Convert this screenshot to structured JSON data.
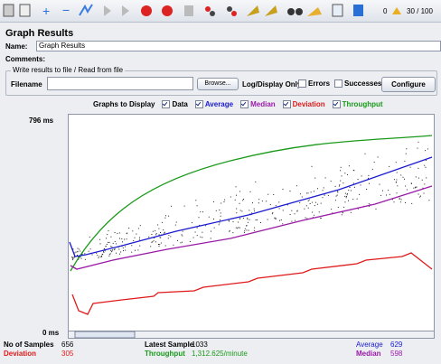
{
  "toolbar": {
    "warnings": "0",
    "threads": "30 / 100"
  },
  "panel": {
    "title": "Graph Results",
    "name_label": "Name:",
    "name_value": "Graph Results",
    "comments_label": "Comments:",
    "file_group": "Write results to file / Read from file",
    "filename_label": "Filename",
    "browse": "Browse...",
    "log_display": "Log/Display Only:",
    "errors": "Errors",
    "successes": "Successes",
    "configure": "Configure"
  },
  "graphs": {
    "label": "Graphs to Display",
    "options": [
      "Data",
      "Average",
      "Median",
      "Deviation",
      "Throughput"
    ],
    "y_max": "796 ms",
    "y_min": "0 ms"
  },
  "stats": {
    "samples_label": "No of Samples",
    "samples": "656",
    "latest_label": "Latest Sample",
    "latest": "1033",
    "average_label": "Average",
    "average": "629",
    "deviation_label": "Deviation",
    "deviation": "305",
    "throughput_label": "Throughput",
    "throughput": "1,312.625/minute",
    "median_label": "Median",
    "median": "598"
  }
}
